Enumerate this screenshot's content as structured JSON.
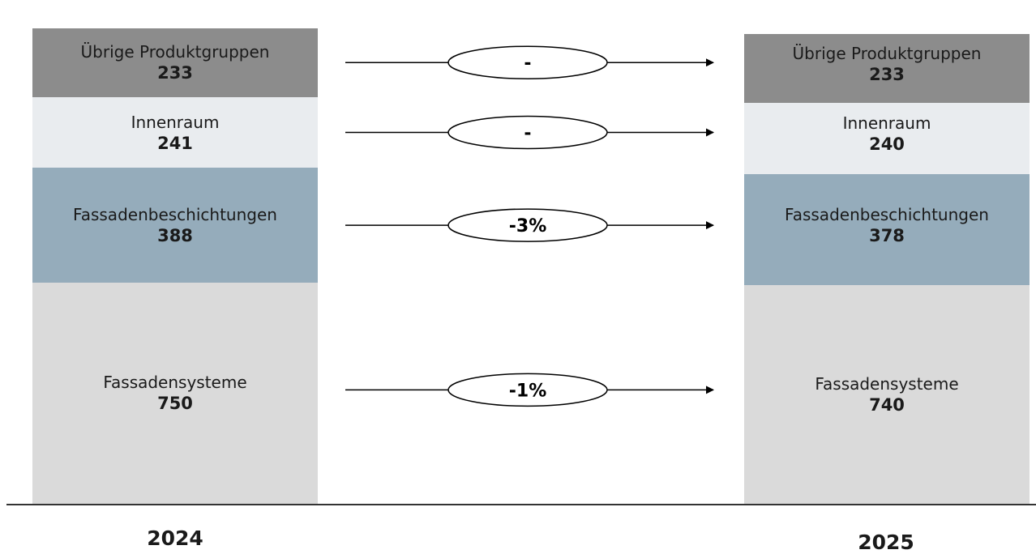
{
  "chart_data": {
    "type": "stacked-bar-bridge",
    "categories": [
      "2024",
      "2025"
    ],
    "segments": [
      {
        "name": "Fassadensysteme",
        "values": [
          750,
          740
        ],
        "color": "#dadada",
        "change": "-1%"
      },
      {
        "name": "Fassadenbeschichtungen",
        "values": [
          388,
          378
        ],
        "color": "#95acbb",
        "change": "-3%"
      },
      {
        "name": "Innenraum",
        "values": [
          241,
          240
        ],
        "color": "#e9ecef",
        "change": "-"
      },
      {
        "name": "Übrige Produktgruppen",
        "values": [
          233,
          233
        ],
        "color": "#8c8c8c",
        "change": "-"
      }
    ],
    "xlabel": "",
    "ylabel": ""
  }
}
